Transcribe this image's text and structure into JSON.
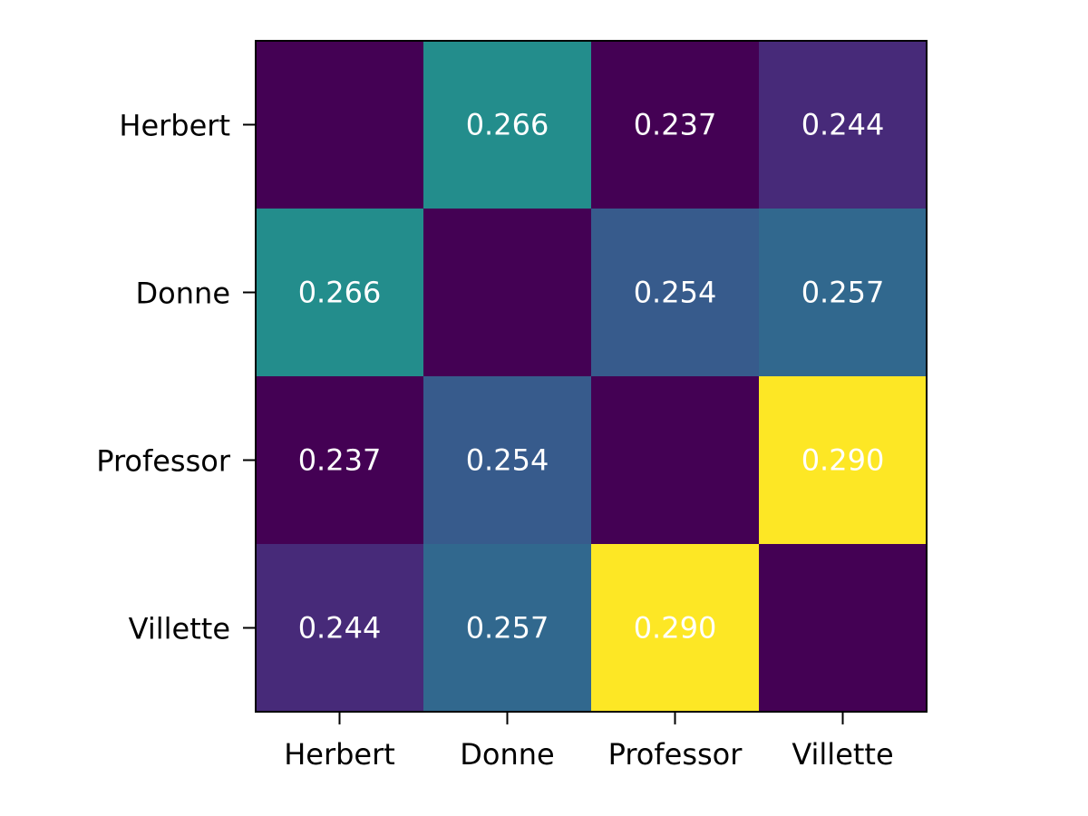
{
  "chart_data": {
    "type": "heatmap",
    "title": "",
    "xlabel": "",
    "ylabel": "",
    "rows": [
      "Herbert",
      "Donne",
      "Professor",
      "Villette"
    ],
    "columns": [
      "Herbert",
      "Donne",
      "Professor",
      "Villette"
    ],
    "values": [
      [
        null,
        0.266,
        0.237,
        0.244
      ],
      [
        0.266,
        null,
        0.254,
        0.257
      ],
      [
        0.237,
        0.254,
        null,
        0.29
      ],
      [
        0.244,
        0.257,
        0.29,
        null
      ]
    ],
    "value_format": "0.000",
    "colormap": "viridis",
    "color_range": [
      0.237,
      0.29
    ],
    "empty_cell_color": "#440154",
    "grid": false,
    "legend": "none"
  }
}
